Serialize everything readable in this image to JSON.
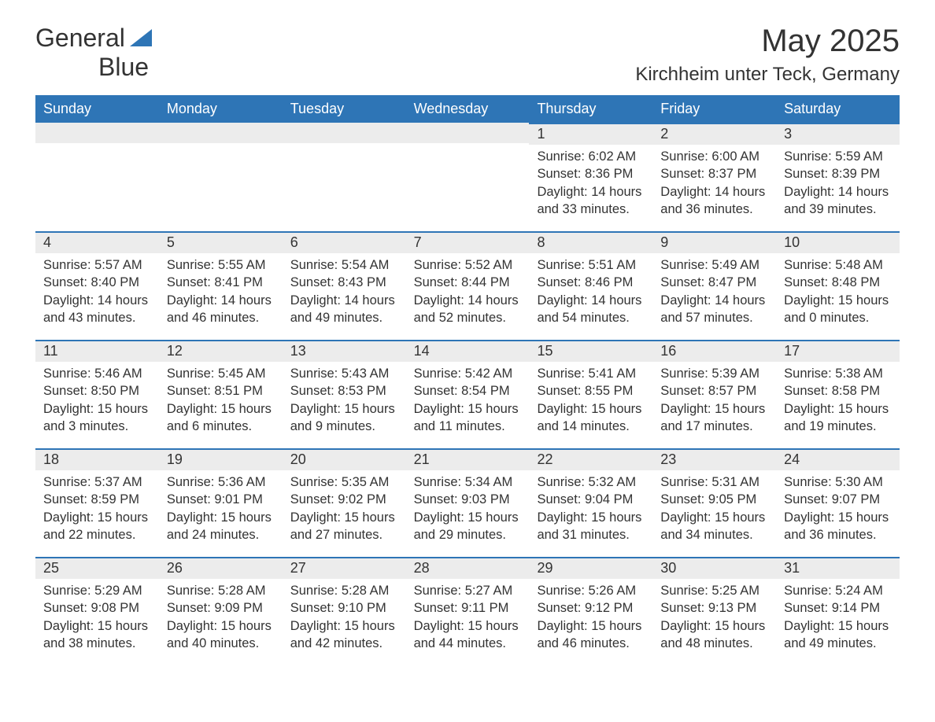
{
  "logo": {
    "word1": "General",
    "word2": "Blue",
    "accent_color": "#2e75b6"
  },
  "colors": {
    "header_bg": "#2e75b6",
    "header_text": "#ffffff",
    "band_bg": "#ececec",
    "band_border": "#2e75b6",
    "body_text": "#333333",
    "background": "#ffffff"
  },
  "fonts": {
    "title_size_pt": 40,
    "location_size_pt": 24,
    "header_size_pt": 18,
    "cell_size_pt": 16
  },
  "title": "May 2025",
  "location": "Kirchheim unter Teck, Germany",
  "day_headers": [
    "Sunday",
    "Monday",
    "Tuesday",
    "Wednesday",
    "Thursday",
    "Friday",
    "Saturday"
  ],
  "weeks": [
    [
      {
        "day": "",
        "sunrise": "",
        "sunset": "",
        "daylight": ""
      },
      {
        "day": "",
        "sunrise": "",
        "sunset": "",
        "daylight": ""
      },
      {
        "day": "",
        "sunrise": "",
        "sunset": "",
        "daylight": ""
      },
      {
        "day": "",
        "sunrise": "",
        "sunset": "",
        "daylight": ""
      },
      {
        "day": "1",
        "sunrise": "Sunrise: 6:02 AM",
        "sunset": "Sunset: 8:36 PM",
        "daylight": "Daylight: 14 hours and 33 minutes."
      },
      {
        "day": "2",
        "sunrise": "Sunrise: 6:00 AM",
        "sunset": "Sunset: 8:37 PM",
        "daylight": "Daylight: 14 hours and 36 minutes."
      },
      {
        "day": "3",
        "sunrise": "Sunrise: 5:59 AM",
        "sunset": "Sunset: 8:39 PM",
        "daylight": "Daylight: 14 hours and 39 minutes."
      }
    ],
    [
      {
        "day": "4",
        "sunrise": "Sunrise: 5:57 AM",
        "sunset": "Sunset: 8:40 PM",
        "daylight": "Daylight: 14 hours and 43 minutes."
      },
      {
        "day": "5",
        "sunrise": "Sunrise: 5:55 AM",
        "sunset": "Sunset: 8:41 PM",
        "daylight": "Daylight: 14 hours and 46 minutes."
      },
      {
        "day": "6",
        "sunrise": "Sunrise: 5:54 AM",
        "sunset": "Sunset: 8:43 PM",
        "daylight": "Daylight: 14 hours and 49 minutes."
      },
      {
        "day": "7",
        "sunrise": "Sunrise: 5:52 AM",
        "sunset": "Sunset: 8:44 PM",
        "daylight": "Daylight: 14 hours and 52 minutes."
      },
      {
        "day": "8",
        "sunrise": "Sunrise: 5:51 AM",
        "sunset": "Sunset: 8:46 PM",
        "daylight": "Daylight: 14 hours and 54 minutes."
      },
      {
        "day": "9",
        "sunrise": "Sunrise: 5:49 AM",
        "sunset": "Sunset: 8:47 PM",
        "daylight": "Daylight: 14 hours and 57 minutes."
      },
      {
        "day": "10",
        "sunrise": "Sunrise: 5:48 AM",
        "sunset": "Sunset: 8:48 PM",
        "daylight": "Daylight: 15 hours and 0 minutes."
      }
    ],
    [
      {
        "day": "11",
        "sunrise": "Sunrise: 5:46 AM",
        "sunset": "Sunset: 8:50 PM",
        "daylight": "Daylight: 15 hours and 3 minutes."
      },
      {
        "day": "12",
        "sunrise": "Sunrise: 5:45 AM",
        "sunset": "Sunset: 8:51 PM",
        "daylight": "Daylight: 15 hours and 6 minutes."
      },
      {
        "day": "13",
        "sunrise": "Sunrise: 5:43 AM",
        "sunset": "Sunset: 8:53 PM",
        "daylight": "Daylight: 15 hours and 9 minutes."
      },
      {
        "day": "14",
        "sunrise": "Sunrise: 5:42 AM",
        "sunset": "Sunset: 8:54 PM",
        "daylight": "Daylight: 15 hours and 11 minutes."
      },
      {
        "day": "15",
        "sunrise": "Sunrise: 5:41 AM",
        "sunset": "Sunset: 8:55 PM",
        "daylight": "Daylight: 15 hours and 14 minutes."
      },
      {
        "day": "16",
        "sunrise": "Sunrise: 5:39 AM",
        "sunset": "Sunset: 8:57 PM",
        "daylight": "Daylight: 15 hours and 17 minutes."
      },
      {
        "day": "17",
        "sunrise": "Sunrise: 5:38 AM",
        "sunset": "Sunset: 8:58 PM",
        "daylight": "Daylight: 15 hours and 19 minutes."
      }
    ],
    [
      {
        "day": "18",
        "sunrise": "Sunrise: 5:37 AM",
        "sunset": "Sunset: 8:59 PM",
        "daylight": "Daylight: 15 hours and 22 minutes."
      },
      {
        "day": "19",
        "sunrise": "Sunrise: 5:36 AM",
        "sunset": "Sunset: 9:01 PM",
        "daylight": "Daylight: 15 hours and 24 minutes."
      },
      {
        "day": "20",
        "sunrise": "Sunrise: 5:35 AM",
        "sunset": "Sunset: 9:02 PM",
        "daylight": "Daylight: 15 hours and 27 minutes."
      },
      {
        "day": "21",
        "sunrise": "Sunrise: 5:34 AM",
        "sunset": "Sunset: 9:03 PM",
        "daylight": "Daylight: 15 hours and 29 minutes."
      },
      {
        "day": "22",
        "sunrise": "Sunrise: 5:32 AM",
        "sunset": "Sunset: 9:04 PM",
        "daylight": "Daylight: 15 hours and 31 minutes."
      },
      {
        "day": "23",
        "sunrise": "Sunrise: 5:31 AM",
        "sunset": "Sunset: 9:05 PM",
        "daylight": "Daylight: 15 hours and 34 minutes."
      },
      {
        "day": "24",
        "sunrise": "Sunrise: 5:30 AM",
        "sunset": "Sunset: 9:07 PM",
        "daylight": "Daylight: 15 hours and 36 minutes."
      }
    ],
    [
      {
        "day": "25",
        "sunrise": "Sunrise: 5:29 AM",
        "sunset": "Sunset: 9:08 PM",
        "daylight": "Daylight: 15 hours and 38 minutes."
      },
      {
        "day": "26",
        "sunrise": "Sunrise: 5:28 AM",
        "sunset": "Sunset: 9:09 PM",
        "daylight": "Daylight: 15 hours and 40 minutes."
      },
      {
        "day": "27",
        "sunrise": "Sunrise: 5:28 AM",
        "sunset": "Sunset: 9:10 PM",
        "daylight": "Daylight: 15 hours and 42 minutes."
      },
      {
        "day": "28",
        "sunrise": "Sunrise: 5:27 AM",
        "sunset": "Sunset: 9:11 PM",
        "daylight": "Daylight: 15 hours and 44 minutes."
      },
      {
        "day": "29",
        "sunrise": "Sunrise: 5:26 AM",
        "sunset": "Sunset: 9:12 PM",
        "daylight": "Daylight: 15 hours and 46 minutes."
      },
      {
        "day": "30",
        "sunrise": "Sunrise: 5:25 AM",
        "sunset": "Sunset: 9:13 PM",
        "daylight": "Daylight: 15 hours and 48 minutes."
      },
      {
        "day": "31",
        "sunrise": "Sunrise: 5:24 AM",
        "sunset": "Sunset: 9:14 PM",
        "daylight": "Daylight: 15 hours and 49 minutes."
      }
    ]
  ]
}
